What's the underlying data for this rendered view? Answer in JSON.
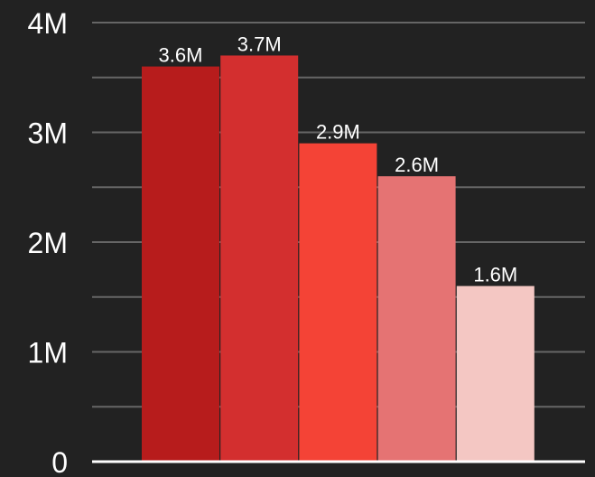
{
  "chart_data": {
    "type": "bar",
    "title": "",
    "xlabel": "",
    "ylabel": "",
    "values": [
      3600000,
      3700000,
      2900000,
      2600000,
      1600000
    ],
    "data_labels": [
      "3.6M",
      "3.7M",
      "2.9M",
      "2.6M",
      "1.6M"
    ],
    "ylim": [
      0,
      4000000
    ],
    "y_ticks": [
      {
        "value": 0,
        "label": "0"
      },
      {
        "value": 1000000,
        "label": "1M"
      },
      {
        "value": 2000000,
        "label": "2M"
      },
      {
        "value": 3000000,
        "label": "3M"
      },
      {
        "value": 4000000,
        "label": "4M"
      }
    ],
    "minor_gridlines": [
      500000,
      1500000,
      2500000,
      3500000
    ],
    "grid": true,
    "legend": "none",
    "colors": [
      "#b71c1c",
      "#d32f2f",
      "#f44336",
      "#e57373",
      "#f4c7c3"
    ],
    "background": "#222222",
    "grid_color": "#666666",
    "axis_color": "#ffffff"
  }
}
